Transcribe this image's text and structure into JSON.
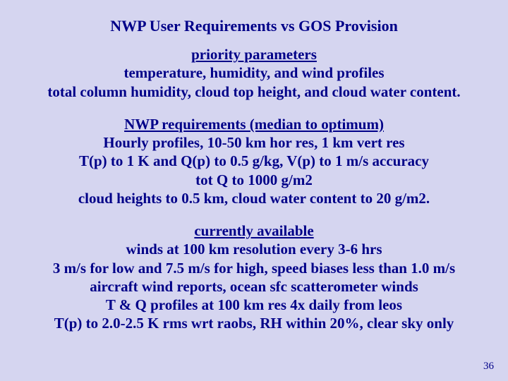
{
  "title": "NWP User Requirements vs GOS Provision",
  "sections": [
    {
      "heading": "priority parameters",
      "lines": [
        "temperature, humidity, and wind profiles",
        "total column humidity, cloud top height, and cloud water content."
      ]
    },
    {
      "heading": "NWP requirements (median to optimum)",
      "lines": [
        "Hourly profiles, 10-50 km hor res, 1 km vert res",
        "T(p) to 1 K and Q(p) to 0.5 g/kg, V(p) to 1 m/s accuracy",
        "tot Q to 1000 g/m2",
        "cloud heights to 0.5 km, cloud water content to 20 g/m2."
      ]
    },
    {
      "heading": "currently available",
      "lines": [
        "winds at 100 km resolution every 3-6 hrs",
        "3 m/s for low and 7.5 m/s for high, speed biases less than 1.0 m/s",
        "aircraft wind reports, ocean sfc scatterometer winds",
        "T & Q profiles at 100 km res 4x daily from leos",
        "T(p) to 2.0-2.5 K rms wrt raobs, RH within 20%, clear sky only"
      ]
    }
  ],
  "page_number": "36",
  "colors": {
    "background": "#d5d5f0",
    "text": "#000088"
  },
  "typography": {
    "font_family": "Times New Roman",
    "title_fontsize": 22,
    "body_fontsize": 21,
    "pagenum_fontsize": 15
  }
}
